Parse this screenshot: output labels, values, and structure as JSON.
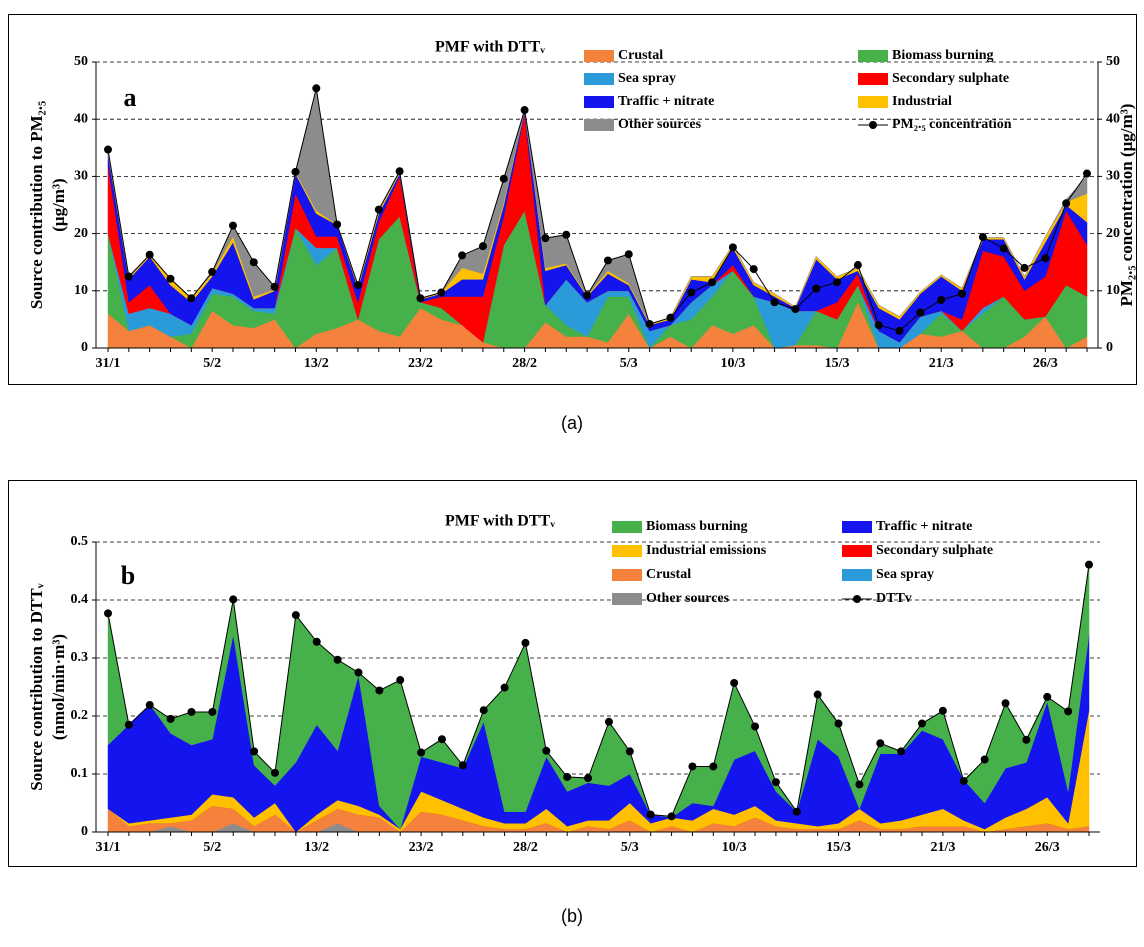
{
  "chart_data": [
    {
      "type": "area",
      "title": "PMF with DTTᵥ",
      "panel": "a",
      "caption": "(a)",
      "ylabel": [
        "Source contribution to PM₂.₅",
        "(μg/m³)"
      ],
      "y2label": "PM₂.₅ concentration (μg/m³)",
      "ylim": [
        0,
        50
      ],
      "yticks": [
        0,
        10,
        20,
        30,
        40,
        50
      ],
      "y2lim": [
        0,
        50
      ],
      "y2ticks": [
        0,
        10,
        20,
        30,
        40,
        50
      ],
      "grid": true,
      "categories": [
        "31/1",
        null,
        null,
        null,
        null,
        "5/2",
        null,
        null,
        null,
        null,
        "13/2",
        null,
        null,
        null,
        null,
        "23/2",
        null,
        null,
        null,
        null,
        "28/2",
        null,
        null,
        null,
        null,
        "5/3",
        null,
        null,
        null,
        null,
        "10/3",
        null,
        null,
        null,
        null,
        "15/3",
        null,
        null,
        null,
        null,
        "21/3",
        null,
        null,
        null,
        null,
        "26/3",
        null,
        null
      ],
      "series": [
        {
          "name": "Crustal",
          "color": "#f4823c",
          "values": [
            6,
            3,
            4,
            2,
            0,
            6.5,
            4,
            3.5,
            5,
            0,
            2.5,
            3.5,
            5,
            3,
            2,
            7,
            5,
            4,
            1,
            0,
            0,
            4.5,
            2,
            2,
            1,
            6,
            0,
            2,
            0,
            4,
            2.5,
            4,
            0,
            0.5,
            0.5,
            0,
            8,
            0,
            0,
            2.5,
            2,
            3,
            0,
            0,
            2,
            5.5,
            0,
            2
          ]
        },
        {
          "name": "Biomass burning",
          "color": "#46b04a",
          "values": [
            14,
            0,
            0,
            0,
            2.5,
            3,
            5,
            3,
            1,
            21,
            12,
            14,
            0,
            16,
            21,
            1,
            2,
            0,
            0,
            18,
            24,
            3,
            2,
            0,
            8,
            3,
            0,
            2,
            5,
            5,
            11,
            5,
            0,
            0,
            6,
            5,
            3,
            0,
            0,
            0,
            4,
            0,
            6,
            9,
            3,
            0,
            11,
            7
          ]
        },
        {
          "name": "Sea spray",
          "color": "#2a9ad8",
          "values": [
            0,
            3,
            3,
            4,
            1.5,
            1,
            0.5,
            0.5,
            1,
            0,
            3,
            0,
            0,
            0,
            0,
            0,
            0,
            0,
            0,
            0,
            0,
            0,
            8,
            6,
            1,
            1,
            3,
            0,
            3,
            2,
            0,
            0,
            8,
            6,
            0,
            0,
            0,
            3,
            1,
            3,
            0.5,
            0,
            1,
            0,
            0,
            0,
            0,
            0
          ]
        },
        {
          "name": "Secondary sulphate",
          "color": "#ff0000",
          "values": [
            12,
            2,
            4,
            0,
            0,
            0,
            0,
            0,
            0,
            6,
            2,
            2,
            3,
            3,
            7,
            0,
            2,
            5,
            8,
            5,
            17,
            0,
            0,
            0,
            0,
            0,
            0,
            0,
            0,
            0,
            1,
            0,
            0,
            0,
            0,
            3,
            2,
            0,
            0,
            0,
            0,
            2,
            10,
            7,
            5,
            7,
            13,
            9
          ]
        },
        {
          "name": "Traffic + nitrate",
          "color": "#1414ee",
          "values": [
            2,
            4,
            5,
            5,
            4,
            2,
            9,
            1.5,
            3,
            3.5,
            4,
            2,
            2.5,
            1.5,
            0.5,
            0.5,
            0.5,
            3,
            3,
            2,
            0.5,
            6,
            2.5,
            1,
            3,
            1,
            1,
            1,
            4,
            0.5,
            3,
            2,
            1,
            0.5,
            9,
            4,
            0.5,
            4,
            4,
            4,
            6,
            5,
            2,
            3,
            2,
            6,
            1,
            4
          ]
        },
        {
          "name": "Industrial",
          "color": "#ffc000",
          "values": [
            0,
            0.3,
            0.3,
            1,
            0.7,
            0.5,
            1,
            0.5,
            0.2,
            0.3,
            0.5,
            0.1,
            0.5,
            0.5,
            0.2,
            0.2,
            0.2,
            2,
            1,
            0.5,
            0,
            0.5,
            0.3,
            0.2,
            0.5,
            0.3,
            0.2,
            0.3,
            0.5,
            1,
            0.5,
            0.5,
            0.5,
            0.2,
            0.5,
            0.5,
            0.5,
            0.5,
            0.5,
            0.3,
            0.3,
            0.5,
            0.3,
            0.3,
            0.5,
            1,
            0.5,
            5
          ]
        },
        {
          "name": "Other sources",
          "color": "#8c8c8c",
          "values": [
            0.7,
            0.2,
            0,
            0.1,
            0,
            0.3,
            1.9,
            6,
            0.5,
            0,
            21.4,
            0,
            0,
            0.2,
            0.2,
            0,
            0,
            2.2,
            4.8,
            4.1,
            0.1,
            5.2,
            5,
            0,
            1.8,
            5.1,
            0,
            0,
            0,
            0,
            0,
            0,
            0,
            0,
            0,
            0,
            0,
            0,
            0,
            0,
            0,
            0,
            0,
            0,
            0,
            0,
            0.5,
            3
          ]
        },
        {
          "name": "PM₂.₅ concentration",
          "type": "line",
          "axis": "y2",
          "color": "#000000",
          "values": [
            34.7,
            12.5,
            16.3,
            12.1,
            8.7,
            13.3,
            21.4,
            15,
            10.7,
            30.8,
            45.4,
            21.6,
            11,
            24.2,
            30.9,
            8.7,
            9.7,
            16.2,
            17.8,
            29.6,
            41.6,
            19.2,
            19.8,
            9.2,
            15.3,
            16.4,
            4.2,
            5.3,
            9.7,
            11.5,
            17.6,
            13.8,
            8,
            6.8,
            10.4,
            11.5,
            14.5,
            4,
            3,
            6.2,
            8.4,
            9.5,
            19.4,
            17.4,
            14,
            15.7,
            25.3,
            30.5
          ]
        }
      ]
    },
    {
      "type": "area",
      "title": "PMF with DTTᵥ",
      "panel": "b",
      "caption": "(b)",
      "ylabel": [
        "Source contribution to DTTᵥ",
        "(nmol/min·m³)"
      ],
      "ylim": [
        0,
        0.5
      ],
      "yticks": [
        0,
        0.1,
        0.2,
        0.3,
        0.4,
        0.5
      ],
      "grid": true,
      "categories": [
        "31/1",
        null,
        null,
        null,
        null,
        "5/2",
        null,
        null,
        null,
        null,
        "13/2",
        null,
        null,
        null,
        null,
        "23/2",
        null,
        null,
        null,
        null,
        "28/2",
        null,
        null,
        null,
        null,
        "5/3",
        null,
        null,
        null,
        null,
        "10/3",
        null,
        null,
        null,
        null,
        "15/3",
        null,
        null,
        null,
        null,
        "21/3",
        null,
        null,
        null,
        null,
        "26/3",
        null,
        null
      ],
      "series": [
        {
          "name": "Biomass burning",
          "color": "#46b04a",
          "values": [
            0.227,
            0,
            0,
            0.025,
            0.057,
            0.047,
            0.061,
            0.024,
            0.022,
            0.254,
            0.143,
            0.157,
            0.005,
            0.199,
            0.257,
            0.007,
            0.04,
            0.005,
            0.02,
            0.214,
            0.291,
            0.01,
            0.025,
            0.008,
            0.11,
            0.039,
            0,
            0.002,
            0.063,
            0.068,
            0.132,
            0.042,
            0.016,
            0,
            0.077,
            0.057,
            0.042,
            0.018,
            0.004,
            0.012,
            0.049,
            0,
            0.075,
            0.112,
            0.039,
            0.008,
            0.138,
            0.121
          ]
        },
        {
          "name": "Traffic +  nitrate",
          "color": "#1414ee",
          "values": [
            0.11,
            0.17,
            0.2,
            0.145,
            0.12,
            0.095,
            0.28,
            0.09,
            0.03,
            0.12,
            0.155,
            0.085,
            0.225,
            0.015,
            0,
            0.06,
            0.065,
            0.07,
            0.165,
            0.02,
            0.02,
            0.09,
            0.06,
            0.065,
            0.06,
            0.05,
            0.015,
            0,
            0.03,
            0.005,
            0.095,
            0.095,
            0.05,
            0.02,
            0.15,
            0.115,
            0,
            0.12,
            0.115,
            0.145,
            0.12,
            0.07,
            0.045,
            0.085,
            0.08,
            0.165,
            0.055,
            0.13
          ]
        },
        {
          "name": "Industrial emissions",
          "color": "#ffc000",
          "values": [
            0,
            0.005,
            0.005,
            0.01,
            0.01,
            0.02,
            0.02,
            0.015,
            0.02,
            0,
            0.01,
            0.015,
            0.015,
            0.005,
            0.005,
            0.035,
            0.025,
            0.02,
            0.015,
            0.01,
            0.01,
            0.025,
            0.01,
            0.01,
            0.015,
            0.03,
            0.015,
            0.015,
            0.02,
            0.025,
            0.02,
            0.02,
            0.01,
            0.01,
            0.005,
            0.01,
            0.02,
            0.01,
            0.015,
            0.02,
            0.03,
            0.01,
            0.005,
            0.02,
            0.03,
            0.045,
            0.01,
            0.2
          ]
        },
        {
          "name": "Secondary  sulphate",
          "color": "#ff0000",
          "values": [
            0,
            0,
            0,
            0,
            0,
            0,
            0,
            0,
            0,
            0,
            0,
            0,
            0,
            0,
            0,
            0,
            0,
            0,
            0,
            0,
            0,
            0,
            0,
            0,
            0,
            0,
            0,
            0,
            0,
            0,
            0,
            0,
            0,
            0,
            0,
            0,
            0,
            0,
            0,
            0,
            0,
            0,
            0,
            0,
            0,
            0,
            0,
            0
          ]
        },
        {
          "name": "Crustal",
          "color": "#f4823c",
          "values": [
            0.04,
            0.01,
            0.015,
            0.005,
            0.02,
            0.045,
            0.025,
            0.01,
            0.03,
            0,
            0.02,
            0.025,
            0.03,
            0.025,
            0,
            0.035,
            0.03,
            0.02,
            0.01,
            0.005,
            0.005,
            0.015,
            0,
            0.01,
            0.005,
            0.02,
            0,
            0.01,
            0,
            0.015,
            0.01,
            0.025,
            0.01,
            0.005,
            0.005,
            0.005,
            0.02,
            0.005,
            0.005,
            0.01,
            0.01,
            0.01,
            0,
            0.005,
            0.01,
            0.015,
            0.005,
            0.01
          ]
        },
        {
          "name": "Sea spray",
          "color": "#2a9ad8",
          "values": [
            0,
            0,
            0,
            0,
            0,
            0,
            0,
            0,
            0,
            0,
            0,
            0,
            0,
            0,
            0,
            0,
            0,
            0,
            0,
            0,
            0,
            0,
            0,
            0,
            0,
            0,
            0,
            0,
            0,
            0,
            0,
            0,
            0,
            0,
            0,
            0,
            0,
            0,
            0,
            0,
            0,
            0,
            0,
            0,
            0,
            0,
            0,
            0
          ]
        },
        {
          "name": "Other sources",
          "color": "#8c8c8c",
          "values": [
            0,
            0,
            0,
            0.01,
            0,
            0,
            0.015,
            0,
            0,
            0,
            0,
            0.015,
            0,
            0,
            0,
            0,
            0,
            0,
            0,
            0,
            0,
            0,
            0,
            0,
            0,
            0,
            0,
            0,
            0,
            0,
            0,
            0,
            0,
            0,
            0,
            0,
            0,
            0,
            0,
            0,
            0,
            0,
            0,
            0,
            0,
            0,
            0,
            0
          ]
        },
        {
          "name": "DTTv",
          "type": "line",
          "color": "#000000",
          "values": [
            0.377,
            0.185,
            0.219,
            0.195,
            0.207,
            0.207,
            0.401,
            0.139,
            0.102,
            0.374,
            0.328,
            0.297,
            0.275,
            0.244,
            0.262,
            0.137,
            0.16,
            0.115,
            0.21,
            0.249,
            0.326,
            0.14,
            0.095,
            0.093,
            0.19,
            0.139,
            0.03,
            0.027,
            0.113,
            0.113,
            0.257,
            0.182,
            0.086,
            0.035,
            0.237,
            0.187,
            0.082,
            0.153,
            0.139,
            0.187,
            0.209,
            0.088,
            0.125,
            0.222,
            0.159,
            0.233,
            0.208,
            0.461
          ]
        }
      ]
    }
  ]
}
